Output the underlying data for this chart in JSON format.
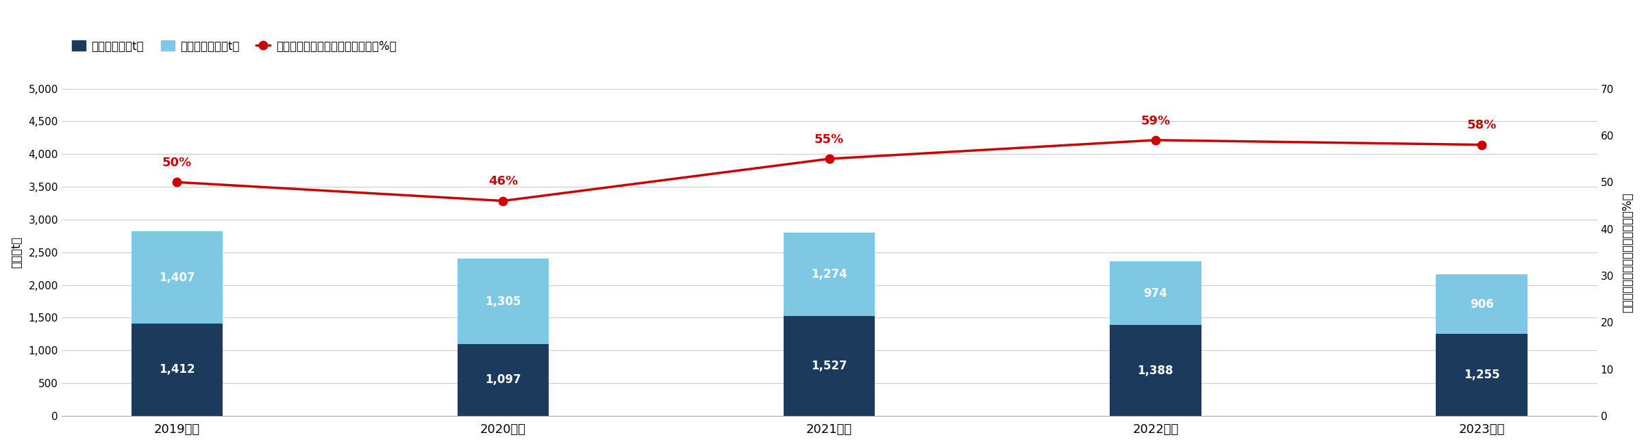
{
  "years": [
    "2019年度",
    "2020年度",
    "2021年度",
    "2022年度",
    "2023年度"
  ],
  "commissioned": [
    1412,
    1097,
    1527,
    1388,
    1255
  ],
  "valuable": [
    1407,
    1305,
    1274,
    974,
    906
  ],
  "percentage": [
    50,
    46,
    55,
    59,
    58
  ],
  "pct_labels": [
    "50%",
    "46%",
    "55%",
    "59%",
    "58%"
  ],
  "bar_color_commissioned": "#1b3a5c",
  "bar_color_valuable": "#7ec8e3",
  "line_color": "#cc0000",
  "ylabel_left": "数量（t）",
  "ylabel_right": "廃棄物総量に占める委託処理量（%）",
  "legend_commissioned": "委託処理量（t）",
  "legend_valuable": "有価売却数量（t）",
  "legend_line": "廃棄物総量に占める委託処理量（%）",
  "ylim_left": [
    0,
    5000
  ],
  "ylim_right": [
    0,
    70
  ],
  "yticks_left": [
    0,
    500,
    1000,
    1500,
    2000,
    2500,
    3000,
    3500,
    4000,
    4500,
    5000
  ],
  "yticks_right": [
    0,
    10,
    20,
    30,
    40,
    50,
    60,
    70
  ],
  "background_color": "#ffffff",
  "grid_color": "#cccccc"
}
